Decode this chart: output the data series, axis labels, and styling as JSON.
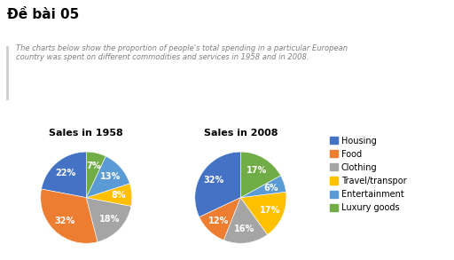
{
  "title": "Đề bài 05",
  "subtitle": "The charts below show the proportion of people's total spending in a particular European\ncountry was spent on different commodities and services in 1958 and in 2008.",
  "chart1_title": "Sales in 1958",
  "chart2_title": "Sales in 2008",
  "categories": [
    "Housing",
    "Food",
    "Clothing",
    "Travel/transpor",
    "Entertainment",
    "Luxury goods"
  ],
  "colors": [
    "#4472C4",
    "#ED7D31",
    "#A5A5A5",
    "#FFC000",
    "#5B9BD5",
    "#70AD47"
  ],
  "values_1958": [
    22,
    32,
    18,
    8,
    13,
    7
  ],
  "values_2008": [
    32,
    12,
    16,
    17,
    6,
    17
  ],
  "bg_color": "#FFFFFF",
  "title_color": "#000000",
  "subtitle_color": "#7F7F7F",
  "font_size_title": 11,
  "font_size_chart_title": 8,
  "font_size_pct": 7,
  "font_size_legend": 7
}
